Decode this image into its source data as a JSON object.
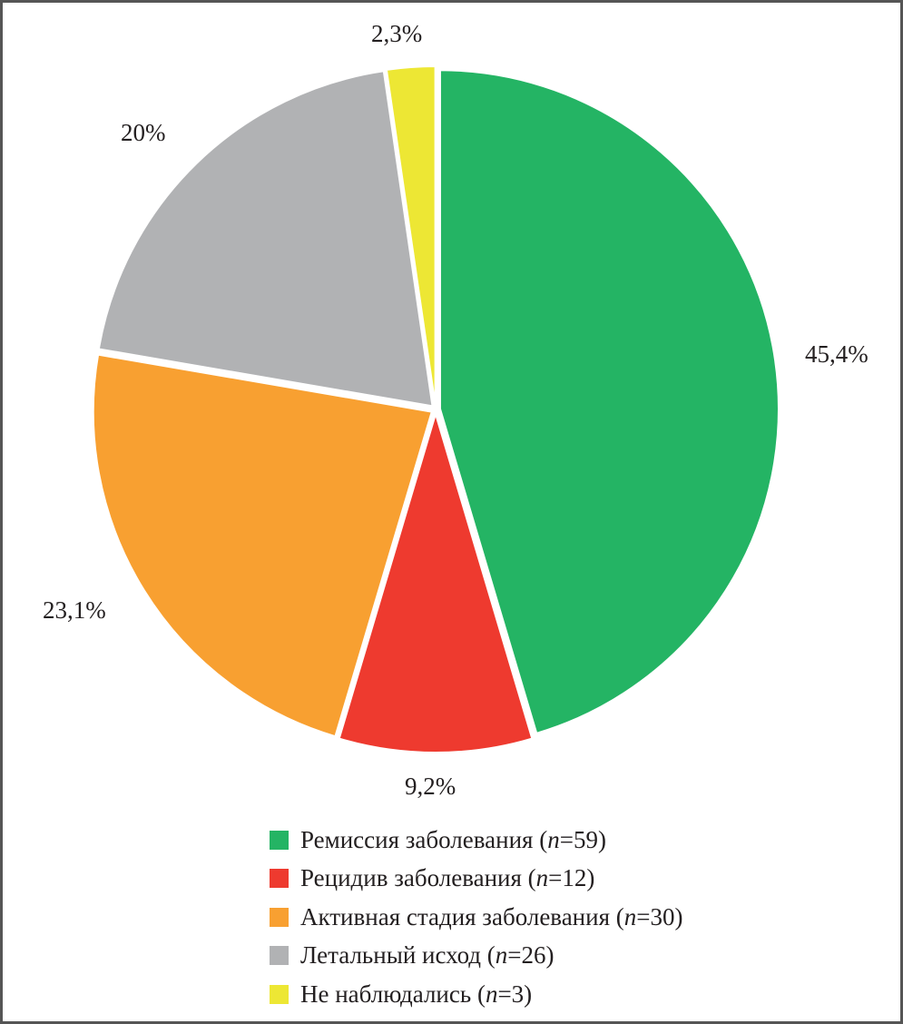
{
  "chart_data": {
    "type": "pie",
    "slices": [
      {
        "label": "Ремиссия заболевания",
        "n": 59,
        "value": 45.4,
        "value_label": "45,4%",
        "color": "#24b464"
      },
      {
        "label": "Рецидив заболевания",
        "n": 12,
        "value": 9.2,
        "value_label": "9,2%",
        "color": "#ee3a2f"
      },
      {
        "label": "Активная стадия заболевания",
        "n": 30,
        "value": 23.1,
        "value_label": "23,1%",
        "color": "#f8a031"
      },
      {
        "label": "Летальный исход",
        "n": 26,
        "value": 20,
        "value_label": "20%",
        "color": "#b1b2b4"
      },
      {
        "label": "Не наблюдались",
        "n": 3,
        "value": 2.3,
        "value_label": "2,3%",
        "color": "#ede734"
      }
    ],
    "start_angle": "12 o'clock",
    "direction": "clockwise",
    "legend_position": "bottom",
    "n_symbol": "n"
  }
}
